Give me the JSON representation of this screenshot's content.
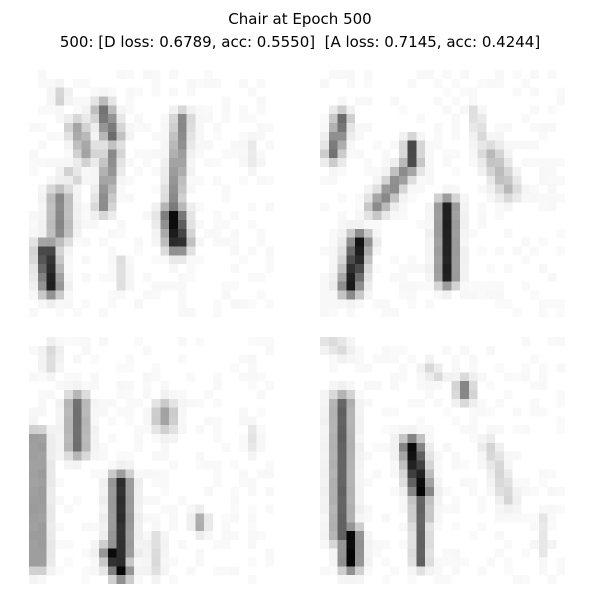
{
  "figure": {
    "title_line1": "Chair at Epoch 500",
    "title_line2": "500: [D loss: 0.6789, acc: 0.5550]  [A loss: 0.7145, acc: 0.4244]"
  },
  "grid": {
    "rows": 2,
    "cols": 2,
    "colormap": "grayscale (dark = high intensity)",
    "samples": [
      {
        "label": ""
      },
      {
        "label": ""
      },
      {
        "label": ""
      },
      {
        "label": ""
      }
    ]
  }
}
